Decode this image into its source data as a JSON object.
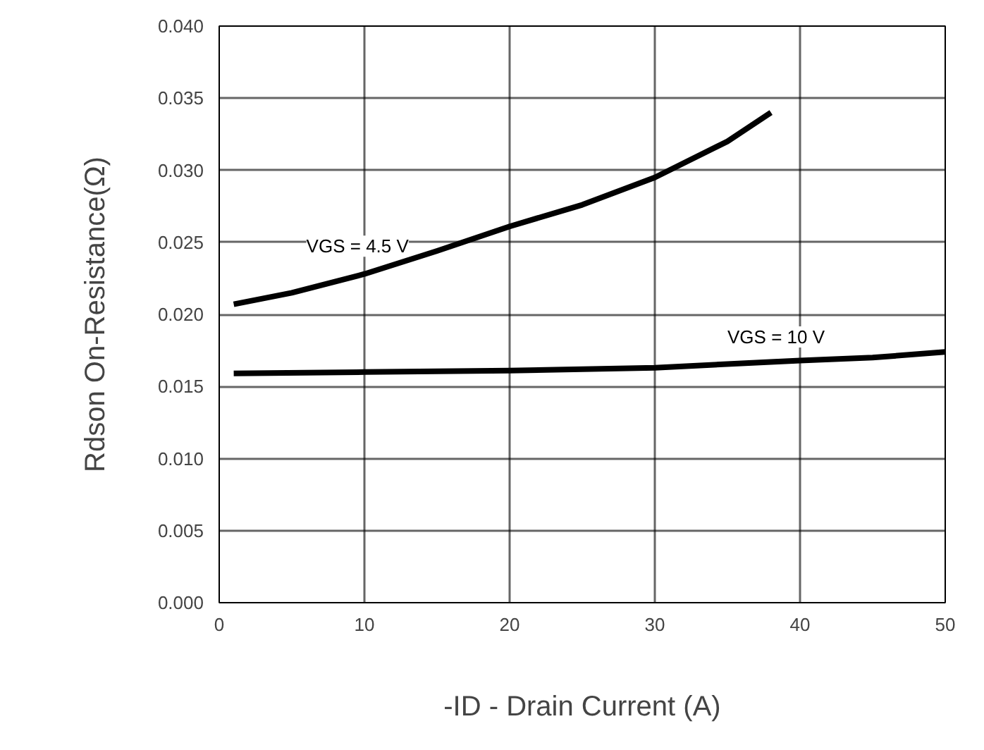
{
  "chart_data": {
    "type": "line",
    "xlabel": "-ID - Drain Current (A)",
    "ylabel": "Rdson On-Resistance(Ω)",
    "xlim": [
      0,
      50
    ],
    "xticks": [
      0,
      10,
      20,
      30,
      40,
      50
    ],
    "ylim": [
      0,
      0.04
    ],
    "yticks": [
      {
        "value": 0,
        "label": "0.000"
      },
      0.005,
      {
        "value": 0.01,
        "label": "0.010"
      },
      0.015,
      {
        "value": 0.02,
        "label": "0.020"
      },
      0.025,
      {
        "value": 0.03,
        "label": "0.030"
      },
      0.035,
      {
        "value": 0.04,
        "label": "0.040"
      }
    ],
    "grid": true,
    "marker": "none",
    "line_style": "solid",
    "series": [
      {
        "name": "VGS = 4.5 V",
        "color": "#000000",
        "x": [
          1,
          5,
          10,
          15,
          20,
          25,
          30,
          35,
          38
        ],
        "values": [
          0.0207,
          0.0215,
          0.0228,
          0.0244,
          0.0261,
          0.0276,
          0.0295,
          0.032,
          0.034
        ]
      },
      {
        "name": "VGS = 10 V",
        "color": "#000000",
        "x": [
          1,
          10,
          20,
          30,
          40,
          45,
          50
        ],
        "values": [
          0.0159,
          0.016,
          0.0161,
          0.0163,
          0.0168,
          0.017,
          0.0174
        ]
      }
    ]
  }
}
